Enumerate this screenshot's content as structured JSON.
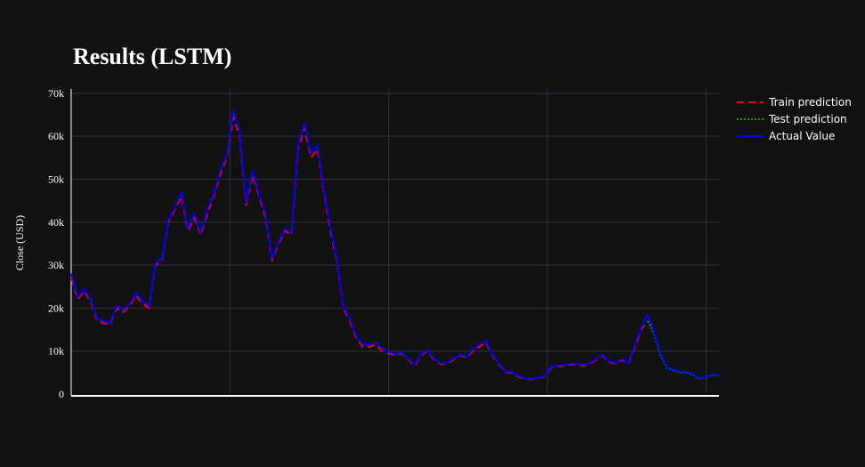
{
  "chart_data": {
    "type": "line",
    "title": "Results (LSTM)",
    "xlabel": "",
    "ylabel": "Close (USD)",
    "ylim": [
      0,
      71000
    ],
    "xlim": [
      0,
      100
    ],
    "y_ticks": [
      {
        "value": 0,
        "label": "0"
      },
      {
        "value": 10000,
        "label": "10k"
      },
      {
        "value": 20000,
        "label": "20k"
      },
      {
        "value": 30000,
        "label": "30k"
      },
      {
        "value": 40000,
        "label": "40k"
      },
      {
        "value": 50000,
        "label": "50k"
      },
      {
        "value": 60000,
        "label": "60k"
      },
      {
        "value": 70000,
        "label": "70k"
      }
    ],
    "x_gridlines": [
      24.5,
      49,
      73.5,
      98
    ],
    "grid": true,
    "legend_position": "top-right",
    "series": [
      {
        "name": "Train prediction",
        "color": "#ff0000",
        "dash": "dash",
        "x": [
          0,
          1,
          2,
          3,
          4,
          5,
          6,
          7,
          8,
          9,
          10,
          11,
          12,
          13,
          14,
          15,
          16,
          17,
          18,
          19,
          20,
          21,
          22,
          23,
          24,
          25,
          26,
          27,
          28,
          29,
          30,
          31,
          32,
          33,
          34,
          35,
          36,
          37,
          38,
          39,
          40,
          41,
          42,
          43,
          44,
          45,
          46,
          47,
          48,
          49,
          50,
          51,
          52,
          53,
          54,
          55,
          56,
          57,
          58,
          59,
          60,
          61,
          62,
          63,
          64,
          65,
          66,
          67,
          68,
          69,
          70,
          71,
          72,
          73,
          74,
          75,
          76,
          77,
          78,
          79,
          80,
          81,
          82,
          83,
          84,
          85,
          86,
          87,
          88,
          89
        ],
        "y": [
          27000,
          22000,
          24000,
          21500,
          17000,
          16500,
          16200,
          20000,
          19000,
          20500,
          23000,
          21000,
          20000,
          30000,
          31000,
          40000,
          43000,
          46000,
          38000,
          41000,
          37000,
          42000,
          46000,
          51000,
          55000,
          64500,
          60000,
          44000,
          51000,
          46000,
          41000,
          31000,
          35000,
          38000,
          37000,
          57000,
          62000,
          55000,
          57000,
          47000,
          38000,
          31000,
          20000,
          17000,
          13000,
          11000,
          11000,
          11500,
          10000,
          9500,
          9000,
          9500,
          8000,
          6500,
          9000,
          10000,
          8000,
          7000,
          7000,
          8000,
          9000,
          8500,
          10000,
          11000,
          12000,
          9000,
          7000,
          5000,
          5000,
          4000,
          3600,
          3400,
          3800,
          4000,
          6000,
          6500,
          6500,
          6800,
          7000,
          6500,
          7000,
          8000,
          9000,
          7500,
          7000,
          8000,
          7000,
          11000,
          15000,
          17000
        ]
      },
      {
        "name": "Test prediction",
        "color": "#00aa00",
        "dash": "dot",
        "x": [
          89,
          90,
          91,
          92,
          93,
          94,
          95,
          96,
          97,
          98,
          99,
          100
        ],
        "y": [
          17000,
          14000,
          9000,
          6000,
          5500,
          5000,
          5000,
          4500,
          3500,
          4000,
          4500,
          4200
        ]
      },
      {
        "name": "Actual Value",
        "color": "#0000ff",
        "dash": "solid",
        "x": [
          0,
          1,
          2,
          3,
          4,
          5,
          6,
          7,
          8,
          9,
          10,
          11,
          12,
          13,
          14,
          15,
          16,
          17,
          18,
          19,
          20,
          21,
          22,
          23,
          24,
          25,
          26,
          27,
          28,
          29,
          30,
          31,
          32,
          33,
          34,
          35,
          36,
          37,
          38,
          39,
          40,
          41,
          42,
          43,
          44,
          45,
          46,
          47,
          48,
          49,
          50,
          51,
          52,
          53,
          54,
          55,
          56,
          57,
          58,
          59,
          60,
          61,
          62,
          63,
          64,
          65,
          66,
          67,
          68,
          69,
          70,
          71,
          72,
          73,
          74,
          75,
          76,
          77,
          78,
          79,
          80,
          81,
          82,
          83,
          84,
          85,
          86,
          87,
          88,
          89,
          90,
          91,
          92,
          93,
          94,
          95,
          96,
          97,
          98,
          99,
          100
        ],
        "y": [
          28000,
          22500,
          24500,
          22000,
          17500,
          17000,
          16500,
          20500,
          19500,
          21000,
          23500,
          21500,
          20500,
          30500,
          31500,
          40500,
          43500,
          47000,
          38500,
          42000,
          37500,
          43000,
          46500,
          52000,
          55500,
          66000,
          61000,
          44500,
          52000,
          46500,
          42000,
          31500,
          35500,
          38500,
          37500,
          58000,
          63000,
          56000,
          58000,
          47500,
          39000,
          31500,
          20500,
          17500,
          13500,
          11500,
          11500,
          12000,
          10500,
          9800,
          9300,
          9700,
          8200,
          6800,
          9200,
          10200,
          8200,
          7200,
          7200,
          8200,
          9200,
          8700,
          10500,
          11500,
          12500,
          9200,
          7200,
          5200,
          5200,
          4200,
          3700,
          3500,
          3900,
          4100,
          6200,
          6700,
          6700,
          7000,
          7200,
          6700,
          7200,
          8200,
          9200,
          7700,
          7200,
          8200,
          7200,
          11500,
          15500,
          18500,
          14500,
          9500,
          6200,
          5700,
          5200,
          5200,
          4700,
          3600,
          4100,
          4600,
          4300
        ]
      }
    ]
  }
}
